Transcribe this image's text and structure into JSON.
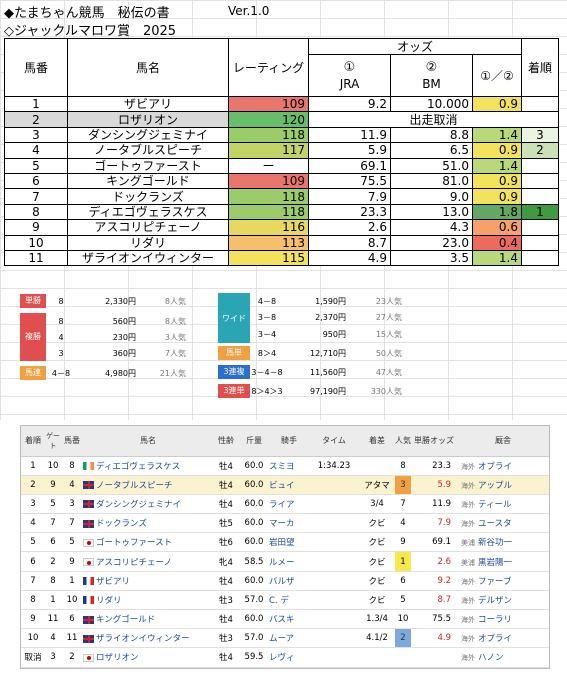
{
  "header": {
    "title": "◆たまちゃん競馬　秘伝の書",
    "version": "Ver.1.0",
    "race": "◇ジャックルマロワ賞　2025"
  },
  "table_head": {
    "no": "馬番",
    "name": "馬名",
    "rating": "レーティング",
    "odds": "オッズ",
    "jra_num": "①",
    "jra": "JRA",
    "bm_num": "②",
    "bm": "BM",
    "ratio": "①／②",
    "rank": "着順"
  },
  "rows": [
    {
      "no": "1",
      "name": "ザビアリ",
      "rating": "109",
      "jra": "9.2",
      "bm": "10.000",
      "ratio": "0.9",
      "rank": "",
      "rc": "#e8766d",
      "xc": "#f3e25b",
      "kc": ""
    },
    {
      "no": "2",
      "name": "ロザリオン",
      "rating": "120",
      "cancel": "出走取消",
      "rc": "#66bd6a"
    },
    {
      "no": "3",
      "name": "ダンシングジェミナイ",
      "rating": "118",
      "jra": "11.9",
      "bm": "8.8",
      "ratio": "1.4",
      "rank": "3",
      "rc": "#9ccb6a",
      "xc": "#b8d97a",
      "kc": "#ebf3e1"
    },
    {
      "no": "4",
      "name": "ノータブルスピーチ",
      "rating": "117",
      "jra": "5.9",
      "bm": "6.5",
      "ratio": "0.9",
      "rank": "2",
      "rc": "#c2d468",
      "xc": "#f3e25b",
      "kc": "#c9e3b4"
    },
    {
      "no": "5",
      "name": "ゴートゥファースト",
      "rating": "ー",
      "jra": "69.1",
      "bm": "51.0",
      "ratio": "1.4",
      "rank": "",
      "rc": "",
      "xc": "#b8d97a",
      "kc": ""
    },
    {
      "no": "6",
      "name": "キングゴールド",
      "rating": "109",
      "jra": "75.5",
      "bm": "81.0",
      "ratio": "0.9",
      "rank": "",
      "rc": "#e8766d",
      "xc": "#f3e25b",
      "kc": ""
    },
    {
      "no": "7",
      "name": "ドックランズ",
      "rating": "118",
      "jra": "7.9",
      "bm": "9.0",
      "ratio": "0.9",
      "rank": "",
      "rc": "#9ccb6a",
      "xc": "#f3e25b",
      "kc": ""
    },
    {
      "no": "8",
      "name": "ディエゴヴェラスケス",
      "rating": "118",
      "jra": "23.3",
      "bm": "13.0",
      "ratio": "1.8",
      "rank": "1",
      "rc": "#9ccb6a",
      "xc": "#63a862",
      "kc": "#3f9b3f"
    },
    {
      "no": "9",
      "name": "アスコリピチェーノ",
      "rating": "116",
      "jra": "2.6",
      "bm": "4.3",
      "ratio": "0.6",
      "rank": "",
      "rc": "#e7d85f",
      "xc": "#f6a06a",
      "kc": ""
    },
    {
      "no": "10",
      "name": "リダリ",
      "rating": "113",
      "jra": "8.7",
      "bm": "23.0",
      "ratio": "0.4",
      "rank": "",
      "rc": "#f5bf6d",
      "xc": "#ed6b5c",
      "kc": ""
    },
    {
      "no": "11",
      "name": "ザライオンイウィンター",
      "rating": "115",
      "jra": "4.9",
      "bm": "3.5",
      "ratio": "1.4",
      "rank": "",
      "rc": "#f3e25b",
      "xc": "#b8d97a",
      "kc": ""
    }
  ],
  "payout": {
    "win": {
      "label": "単勝",
      "num": "8",
      "amt": "2,330円",
      "pop": "8人気"
    },
    "place_label": "複勝",
    "place": [
      {
        "num": "8",
        "amt": "560円",
        "pop": "8人気"
      },
      {
        "num": "4",
        "amt": "230円",
        "pop": "3人気"
      },
      {
        "num": "3",
        "amt": "360円",
        "pop": "7人気"
      }
    ],
    "quinella": {
      "label": "馬連",
      "num": "4－8",
      "amt": "4,980円",
      "pop": "21人気"
    },
    "wide_label": "ワイド",
    "wide": [
      {
        "num": "4－8",
        "amt": "1,590円",
        "pop": "23人気"
      },
      {
        "num": "3－8",
        "amt": "2,370円",
        "pop": "27人気"
      },
      {
        "num": "3－4",
        "amt": "950円",
        "pop": "15人気"
      }
    ],
    "exacta": {
      "label": "馬単",
      "num": "8＞4",
      "amt": "12,710円",
      "pop": "50人気"
    },
    "trio": {
      "label": "3連複",
      "num": "3－4－8",
      "amt": "11,560円",
      "pop": "47人気"
    },
    "trifecta": {
      "label": "3連単",
      "num": "8＞4＞3",
      "amt": "97,190円",
      "pop": "330人気"
    }
  },
  "results_head": {
    "pos": "着順",
    "gate": "ゲート",
    "no": "馬番",
    "name": "馬名",
    "sex": "性齢",
    "wt": "斤量",
    "jockey": "騎手",
    "time": "タイム",
    "margin": "着差",
    "pop": "人気",
    "odds": "単勝オッズ",
    "trainer": "厩舎"
  },
  "results": [
    {
      "pos": "1",
      "gate": "10",
      "no": "8",
      "flag": "ie",
      "name": "ディエゴヴェラスケス",
      "sex": "牡4",
      "wt": "60.0",
      "jockey": "スミヨ",
      "time": "1:34.23",
      "margin": "",
      "pop": "8",
      "odds": "23.3",
      "loc": "海外",
      "trainer": "オブライ",
      "hl": false,
      "pc": ""
    },
    {
      "pos": "2",
      "gate": "9",
      "no": "4",
      "flag": "gb",
      "name": "ノータブルスピーチ",
      "sex": "牡4",
      "wt": "60.0",
      "jockey": "ビュイ",
      "time": "",
      "margin": "アタマ",
      "pop": "3",
      "odds": "5.9",
      "loc": "海外",
      "trainer": "アップル",
      "hl": true,
      "pc": "#f0a040"
    },
    {
      "pos": "3",
      "gate": "5",
      "no": "3",
      "flag": "gb",
      "name": "ダンシングジェミナイ",
      "sex": "牡4",
      "wt": "60.0",
      "jockey": "ライア",
      "time": "",
      "margin": "3/4",
      "pop": "7",
      "odds": "11.9",
      "loc": "海外",
      "trainer": "ティール",
      "hl": false,
      "pc": ""
    },
    {
      "pos": "4",
      "gate": "7",
      "no": "7",
      "flag": "gb",
      "name": "ドックランズ",
      "sex": "牡5",
      "wt": "60.0",
      "jockey": "マーカ",
      "time": "",
      "margin": "クビ",
      "pop": "4",
      "odds": "7.9",
      "loc": "海外",
      "trainer": "ユースタ",
      "hl": false,
      "pc": ""
    },
    {
      "pos": "5",
      "gate": "6",
      "no": "5",
      "flag": "jp",
      "name": "ゴートゥファースト",
      "sex": "牡6",
      "wt": "60.0",
      "jockey": "岩田望",
      "time": "",
      "margin": "クビ",
      "pop": "9",
      "odds": "69.1",
      "loc": "美浦",
      "trainer": "新谷功一",
      "hl": false,
      "pc": ""
    },
    {
      "pos": "6",
      "gate": "2",
      "no": "9",
      "flag": "jp",
      "name": "アスコリピチェーノ",
      "sex": "牝4",
      "wt": "58.5",
      "jockey": "ルメー",
      "time": "",
      "margin": "クビ",
      "pop": "1",
      "odds": "2.6",
      "loc": "美浦",
      "trainer": "黒岩陽一",
      "hl": false,
      "pc": "#f7e94a"
    },
    {
      "pos": "7",
      "gate": "8",
      "no": "1",
      "flag": "fr",
      "name": "ザビアリ",
      "sex": "牡4",
      "wt": "60.0",
      "jockey": "バルザ",
      "time": "",
      "margin": "クビ",
      "pop": "6",
      "odds": "9.2",
      "loc": "海外",
      "trainer": "ファーブ",
      "hl": false,
      "pc": ""
    },
    {
      "pos": "8",
      "gate": "1",
      "no": "10",
      "flag": "fr",
      "name": "リダリ",
      "sex": "牡3",
      "wt": "57.0",
      "jockey": "C. デ",
      "time": "",
      "margin": "クビ",
      "pop": "5",
      "odds": "8.7",
      "loc": "海外",
      "trainer": "デルザン",
      "hl": false,
      "pc": ""
    },
    {
      "pos": "9",
      "gate": "11",
      "no": "6",
      "flag": "gb",
      "name": "キングゴールド",
      "sex": "牡4",
      "wt": "60.0",
      "jockey": "バスキ",
      "time": "",
      "margin": "1.3/4",
      "pop": "10",
      "odds": "75.5",
      "loc": "海外",
      "trainer": "コーラリ",
      "hl": false,
      "pc": ""
    },
    {
      "pos": "10",
      "gate": "4",
      "no": "11",
      "flag": "gb",
      "name": "ザライオンイウィンター",
      "sex": "牡3",
      "wt": "57.0",
      "jockey": "ムーア",
      "time": "",
      "margin": "4.1/2",
      "pop": "2",
      "odds": "4.9",
      "loc": "海外",
      "trainer": "オブライ",
      "hl": false,
      "pc": "#7fa8de"
    },
    {
      "pos": "取消",
      "gate": "3",
      "no": "2",
      "flag": "jp",
      "name": "ロザリオン",
      "sex": "牡4",
      "wt": "59.5",
      "jockey": "レヴィ",
      "time": "",
      "margin": "",
      "pop": "",
      "odds": "",
      "loc": "海外",
      "trainer": "ハノン",
      "hl": false,
      "pc": ""
    }
  ]
}
